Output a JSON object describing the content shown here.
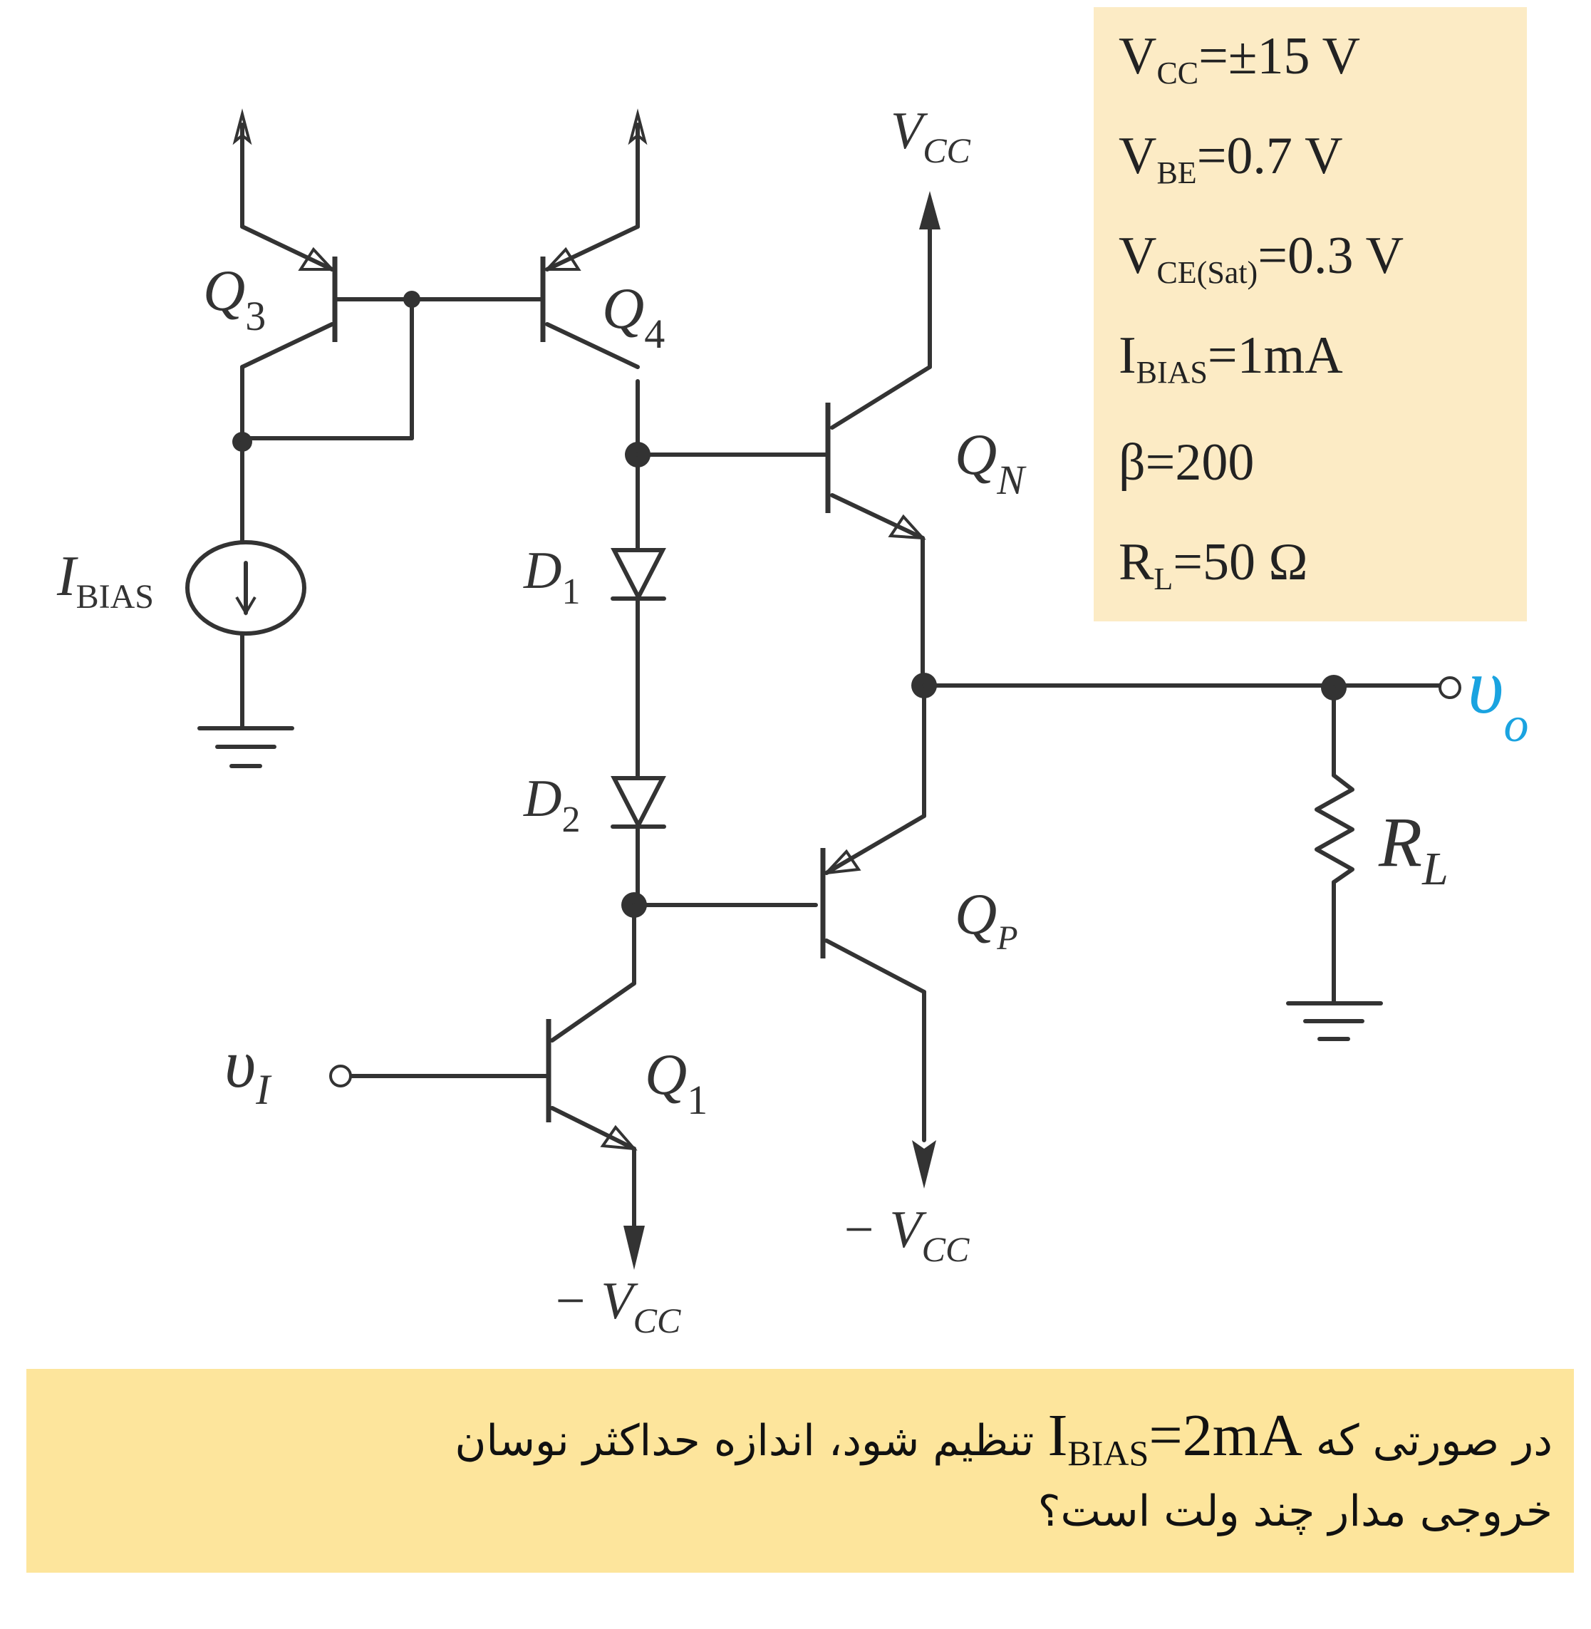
{
  "parameters": [
    {
      "symbol": "V",
      "sub": "CC",
      "value": "=±15 V"
    },
    {
      "symbol": "V",
      "sub": "BE",
      "value": "=0.7 V"
    },
    {
      "symbol": "V",
      "sub": "CE(Sat)",
      "value": "=0.3 V"
    },
    {
      "symbol": "I",
      "sub": "BIAS",
      "value": "=1mA"
    },
    {
      "symbol": "β",
      "sub": "",
      "value": "=200"
    },
    {
      "symbol": "R",
      "sub": "L",
      "value": "=50 Ω"
    }
  ],
  "labels": {
    "q3": {
      "main": "Q",
      "sub": "3"
    },
    "q4": {
      "main": "Q",
      "sub": "4"
    },
    "qn": {
      "main": "Q",
      "sub": "N"
    },
    "qp": {
      "main": "Q",
      "sub": "P"
    },
    "q1": {
      "main": "Q",
      "sub": "1"
    },
    "d1": {
      "main": "D",
      "sub": "1"
    },
    "d2": {
      "main": "D",
      "sub": "2"
    },
    "ibias": {
      "main": "I",
      "sub": "BIAS"
    },
    "vcc_top": {
      "main": "V",
      "sub": "CC"
    },
    "vcc_neg_qp": {
      "main": "− V",
      "sub": "CC"
    },
    "vcc_neg_q1": {
      "main": "− V",
      "sub": "CC"
    },
    "vin": {
      "main": "υ",
      "sub": "I"
    },
    "vout": {
      "main": "υ",
      "sub": "o"
    },
    "rl": {
      "main": "R",
      "sub": "L"
    }
  },
  "question": {
    "line1_before": "در صورتی که",
    "line1_latin_main": "I",
    "line1_latin_sub": "BIAS",
    "line1_latin_value": "=2mA",
    "line1_after": "تنظیم شود، اندازه حداکثر نوسان",
    "line2": "خروجی مدار چند ولت است؟"
  },
  "colors": {
    "wire": "#333333",
    "output_label": "#1aa3e0",
    "params_bg": "#fcebc5",
    "question_bg": "#fde59c"
  }
}
